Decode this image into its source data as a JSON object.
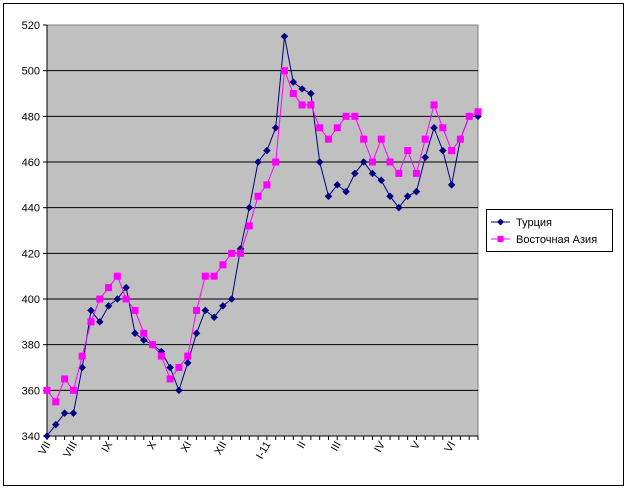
{
  "chart_data": {
    "type": "line",
    "title": "",
    "xlabel": "",
    "ylabel": "",
    "ylim": [
      340,
      520
    ],
    "yticks": [
      340,
      360,
      380,
      400,
      420,
      440,
      460,
      480,
      500,
      520
    ],
    "grid": "horizontal",
    "legend_position": "right",
    "background": "#C0C0C0",
    "month_labels": [
      "VII",
      "VIII",
      "IX",
      "X",
      "XI",
      "XII",
      "I-11",
      "II",
      "III",
      "IV",
      "V",
      "VI"
    ],
    "month_label_index": [
      0,
      3,
      7,
      12,
      16,
      20,
      25,
      29,
      33,
      38,
      42,
      46
    ],
    "series": [
      {
        "name": "Турция",
        "color": "#000080",
        "marker": "diamond",
        "values": [
          340,
          345,
          350,
          350,
          370,
          395,
          390,
          397,
          400,
          405,
          385,
          382,
          380,
          377,
          370,
          360,
          372,
          385,
          395,
          392,
          397,
          400,
          422,
          440,
          460,
          465,
          475,
          515,
          495,
          492,
          490,
          460,
          445,
          450,
          447,
          455,
          460,
          455,
          452,
          445,
          440,
          445,
          447,
          462,
          475,
          465,
          450,
          470,
          480,
          480
        ]
      },
      {
        "name": "Восточная Азия",
        "color": "#FF00FF",
        "marker": "square",
        "values": [
          360,
          355,
          365,
          360,
          375,
          390,
          400,
          405,
          410,
          400,
          395,
          385,
          380,
          375,
          365,
          370,
          375,
          395,
          410,
          410,
          415,
          420,
          420,
          432,
          445,
          450,
          460,
          500,
          490,
          485,
          485,
          475,
          470,
          475,
          480,
          480,
          470,
          460,
          470,
          460,
          455,
          465,
          455,
          470,
          485,
          475,
          465,
          470,
          480,
          482
        ]
      }
    ]
  }
}
